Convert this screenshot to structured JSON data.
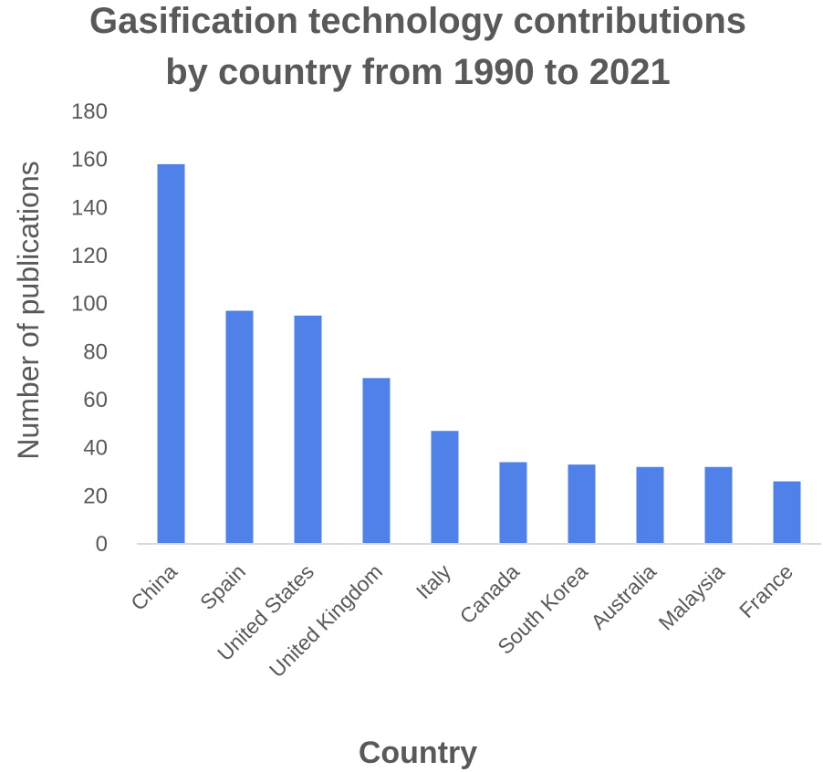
{
  "chart_data": {
    "type": "bar",
    "title_lines": [
      "Gasification technology contributions",
      "by country from 1990 to 2021"
    ],
    "xlabel": "Country",
    "ylabel": "Number of publications",
    "ylim": [
      0,
      180
    ],
    "yticks": [
      "0",
      "20",
      "40",
      "60",
      "80",
      "100",
      "120",
      "140",
      "160",
      "180"
    ],
    "categories": [
      "China",
      "Spain",
      "United States",
      "United Kingdom",
      "Italy",
      "Canada",
      "South Korea",
      "Australia",
      "Malaysia",
      "France"
    ],
    "values": [
      158,
      97,
      95,
      69,
      47,
      34,
      33,
      32,
      32,
      26
    ],
    "grid": false,
    "legend": "none",
    "bar_color": "#4f81e8"
  }
}
